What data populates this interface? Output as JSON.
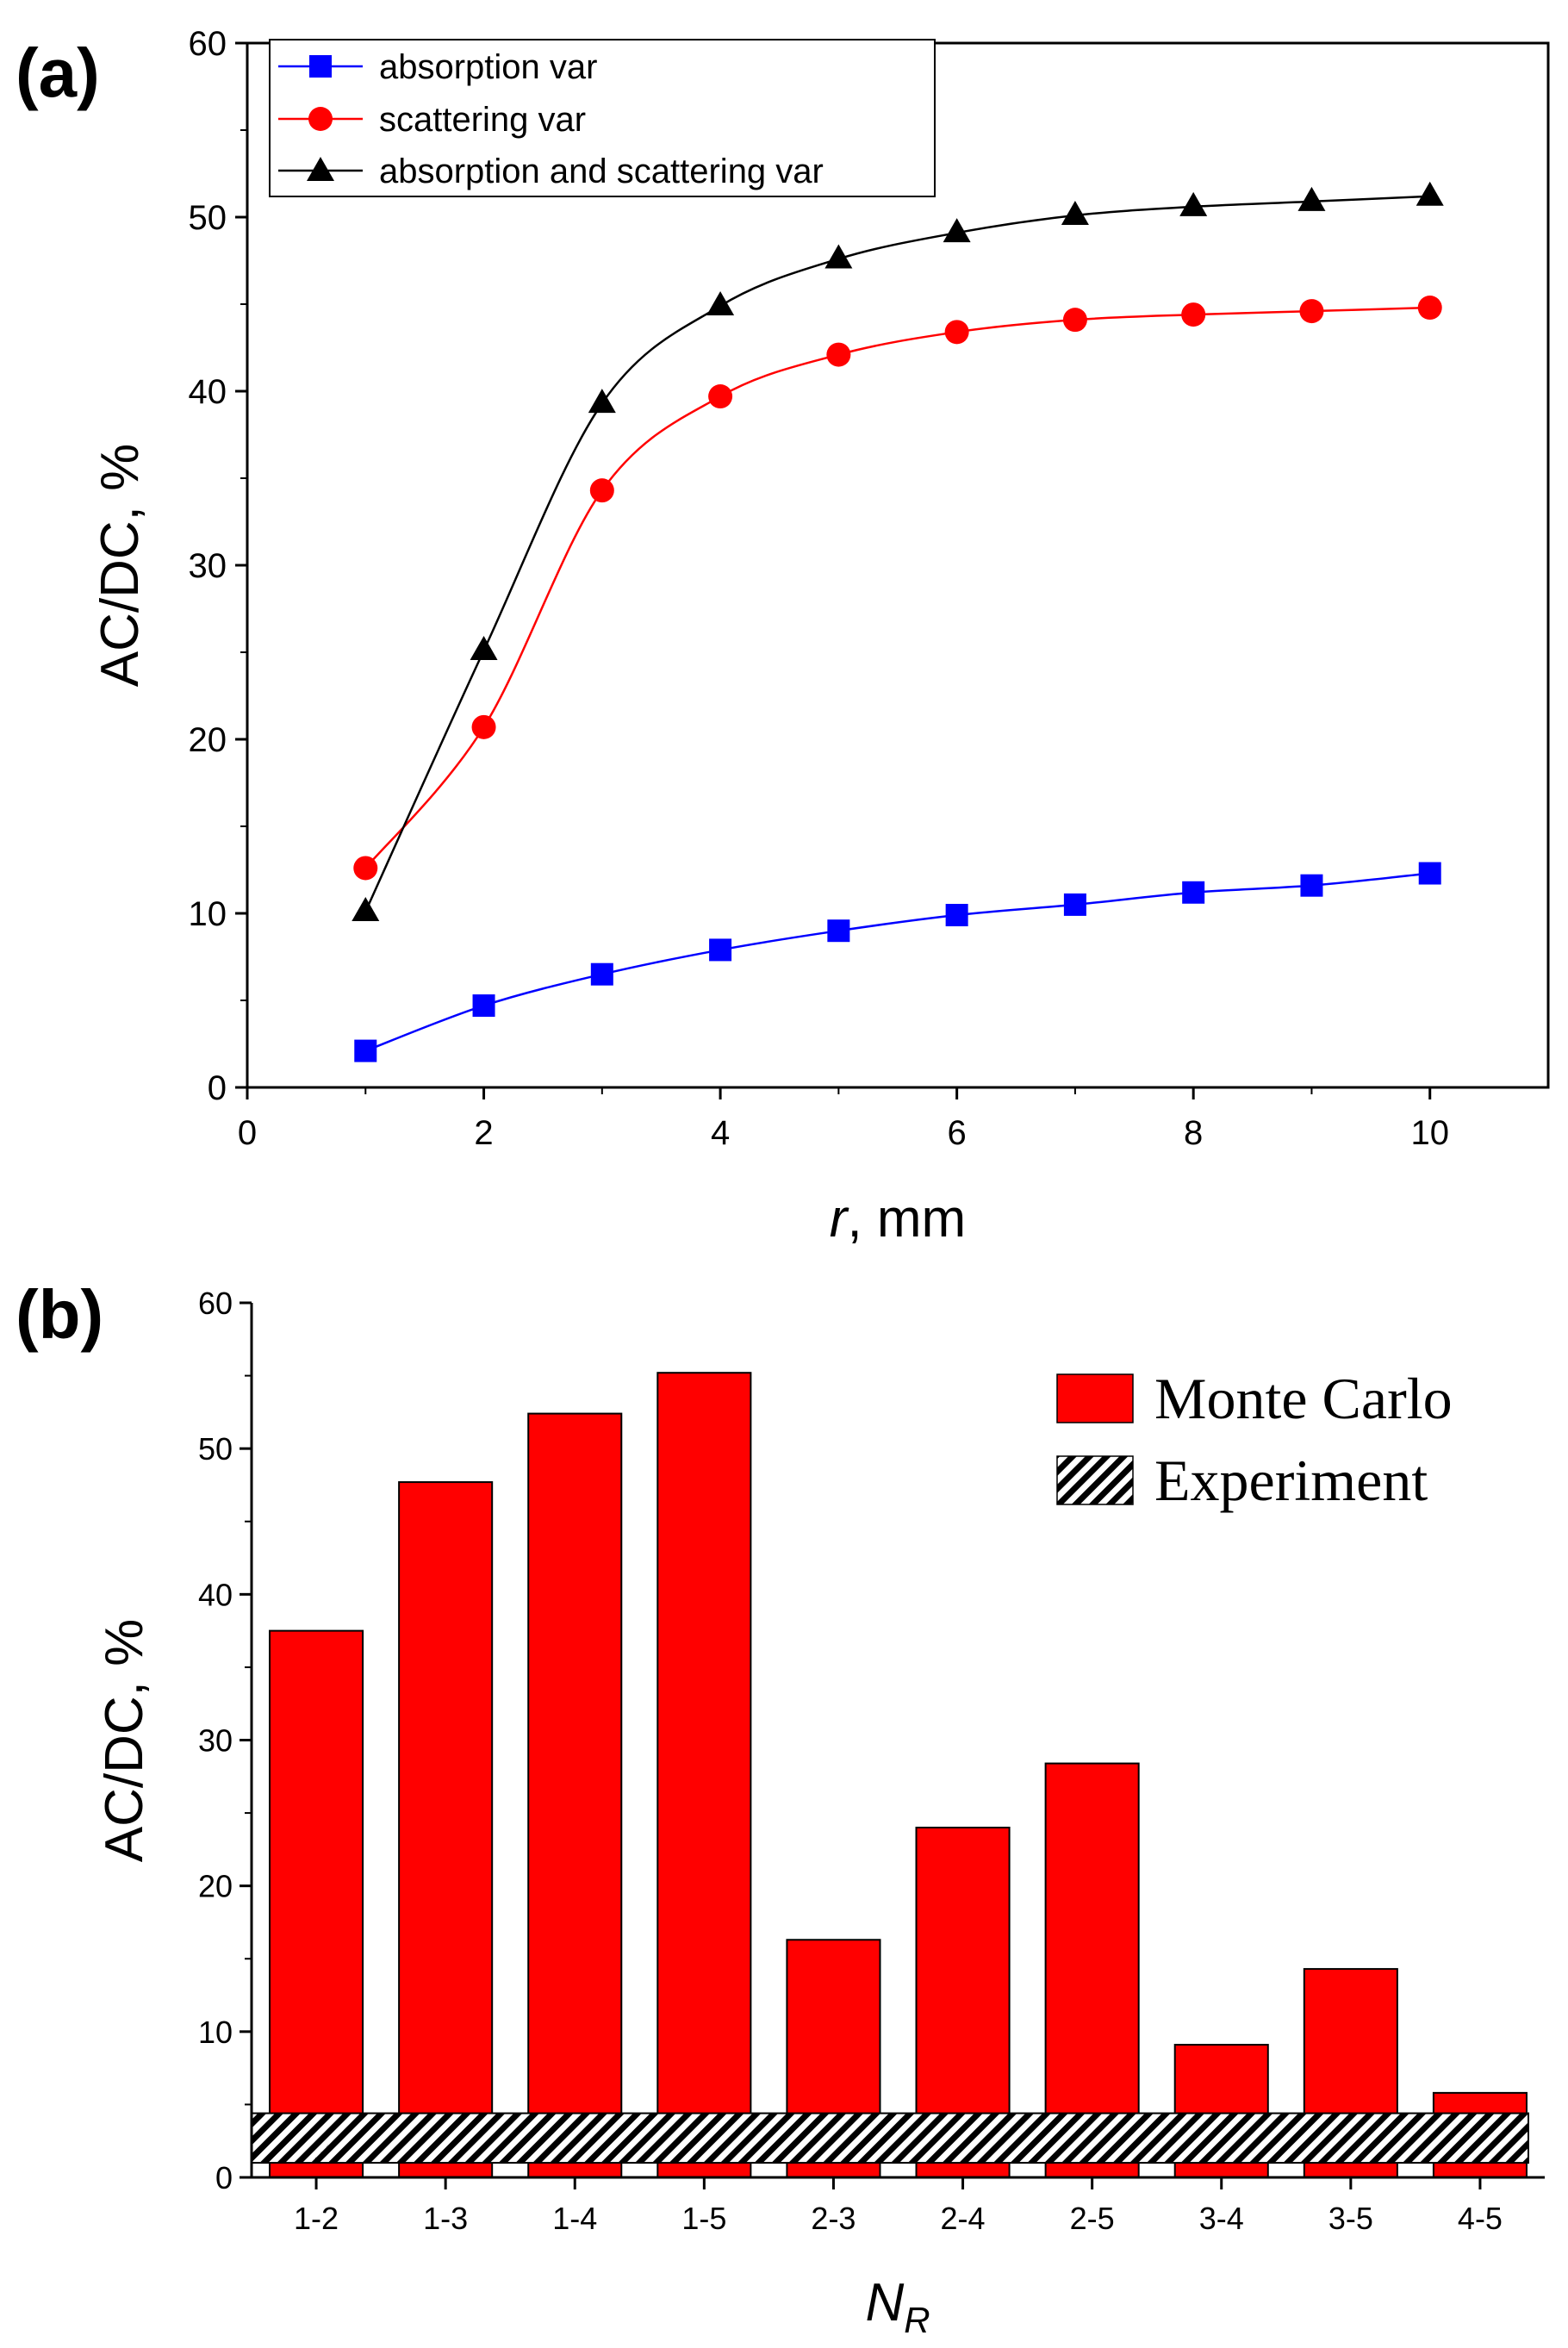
{
  "chart_data": [
    {
      "type": "line",
      "panel_label": "(a)",
      "xlabel_var": "r",
      "xlabel_unit": ", mm",
      "ylabel": "AC/DC, %",
      "xlim": [
        0,
        11
      ],
      "ylim": [
        0,
        60
      ],
      "xticks": [
        0,
        2,
        4,
        6,
        8,
        10
      ],
      "yticks": [
        0,
        10,
        20,
        30,
        40,
        50,
        60
      ],
      "legend_position": "top-left",
      "x": [
        1,
        2,
        3,
        4,
        5,
        6,
        7,
        8,
        9,
        10
      ],
      "series": [
        {
          "name": "absorption var",
          "marker": "square",
          "color": "#0000ff",
          "values": [
            2.1,
            4.7,
            6.5,
            7.9,
            9.0,
            9.9,
            10.5,
            11.2,
            11.6,
            12.3
          ]
        },
        {
          "name": "scattering var",
          "marker": "circle",
          "color": "#ff0000",
          "values": [
            12.6,
            20.7,
            34.3,
            39.7,
            42.1,
            43.4,
            44.1,
            44.4,
            44.6,
            44.8
          ]
        },
        {
          "name": "absorption and scattering var",
          "marker": "triangle",
          "color": "#000000",
          "values": [
            10.1,
            25.1,
            39.3,
            44.9,
            47.6,
            49.1,
            50.1,
            50.6,
            50.9,
            51.2
          ]
        }
      ]
    },
    {
      "type": "bar",
      "panel_label": "(b)",
      "xlabel_var": "N",
      "xlabel_sub": "R",
      "ylabel": "AC/DC, %",
      "ylim": [
        0,
        60
      ],
      "yticks": [
        0,
        10,
        20,
        30,
        40,
        50,
        60
      ],
      "legend_position": "top-right",
      "categories": [
        "1-2",
        "1-3",
        "1-4",
        "1-5",
        "2-3",
        "2-4",
        "2-5",
        "3-4",
        "3-5",
        "4-5"
      ],
      "series": [
        {
          "name": "Monte Carlo",
          "color": "#ff0000",
          "values": [
            37.5,
            47.7,
            52.4,
            55.2,
            16.3,
            24.0,
            28.4,
            9.1,
            14.3,
            5.8
          ]
        }
      ],
      "band": {
        "name": "Experiment",
        "pattern": "hatched",
        "y_range": [
          1.0,
          4.4
        ]
      }
    }
  ]
}
